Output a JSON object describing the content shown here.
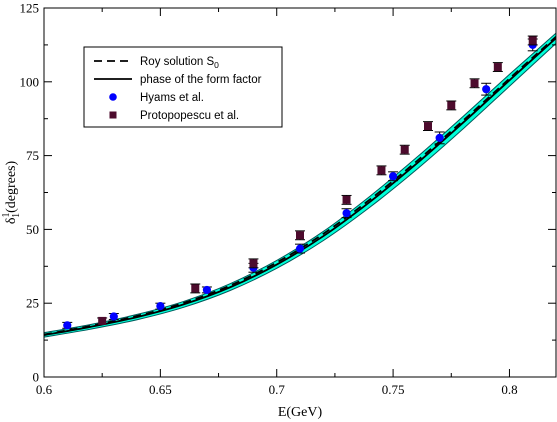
{
  "chart_data": {
    "type": "line",
    "xlabel": "E(GeV)",
    "ylabel": {
      "base": "δ",
      "sup": "1",
      "sub": "1",
      "rest": "(degrees)"
    },
    "xlim": [
      0.6,
      0.82
    ],
    "ylim": [
      0,
      125
    ],
    "x_ticks": [
      "0.6",
      "0.65",
      "0.7",
      "0.75",
      "0.8"
    ],
    "y_ticks": [
      "0",
      "25",
      "50",
      "75",
      "100",
      "125"
    ],
    "grid": false,
    "legend_position": "top-left",
    "legend": [
      {
        "label": "Roy solution S",
        "sub": "0",
        "style": "dashed"
      },
      {
        "label": "phase of the form factor",
        "style": "solid"
      },
      {
        "label": "Hyams et al.",
        "marker": "circle",
        "color": "#0000ff"
      },
      {
        "label": "Protopopescu et al.",
        "marker": "square",
        "color": "#4d0b2d"
      }
    ],
    "band": {
      "color": "#00ffd8",
      "edge_color": "#005a5a",
      "x": [
        0.6,
        0.62,
        0.64,
        0.66,
        0.68,
        0.7,
        0.72,
        0.74,
        0.76,
        0.78,
        0.8,
        0.82
      ],
      "lower": [
        13.5,
        16.2,
        19.4,
        23.6,
        29.3,
        36.8,
        46.2,
        57.5,
        70.2,
        84.0,
        98.5,
        113.0
      ],
      "upper": [
        15.0,
        17.8,
        21.2,
        25.6,
        31.6,
        39.5,
        49.3,
        61.2,
        74.3,
        88.2,
        102.5,
        116.5
      ]
    },
    "series": [
      {
        "name": "phase of the form factor",
        "style": "solid",
        "x": [
          0.6,
          0.62,
          0.64,
          0.66,
          0.68,
          0.7,
          0.72,
          0.74,
          0.76,
          0.78,
          0.8,
          0.82
        ],
        "y": [
          14.2,
          17.0,
          20.3,
          24.6,
          30.4,
          38.1,
          47.7,
          59.3,
          72.2,
          86.1,
          100.5,
          114.8
        ]
      },
      {
        "name": "Roy solution S0",
        "style": "dashed",
        "x": [
          0.6,
          0.62,
          0.64,
          0.66,
          0.68,
          0.7,
          0.72,
          0.74,
          0.76,
          0.78,
          0.8,
          0.82
        ],
        "y": [
          14.4,
          17.3,
          20.7,
          25.1,
          31.0,
          38.8,
          48.5,
          60.1,
          73.0,
          86.8,
          101.1,
          115.3
        ]
      },
      {
        "name": "Hyams et al.",
        "marker": "circle",
        "color": "#0000ff",
        "points": [
          [
            0.61,
            17.5,
            1.0
          ],
          [
            0.63,
            20.5,
            1.0
          ],
          [
            0.65,
            24.0,
            1.0
          ],
          [
            0.67,
            29.5,
            1.0
          ],
          [
            0.69,
            37.0,
            1.5
          ],
          [
            0.71,
            43.5,
            1.5
          ],
          [
            0.73,
            55.5,
            1.5
          ],
          [
            0.75,
            68.0,
            1.5
          ],
          [
            0.77,
            81.0,
            2.0
          ],
          [
            0.79,
            97.5,
            2.0
          ],
          [
            0.81,
            112.5,
            2.0
          ]
        ]
      },
      {
        "name": "Protopopescu et al.",
        "marker": "square",
        "color": "#4d0b2d",
        "points": [
          [
            0.625,
            19.0,
            1.0
          ],
          [
            0.665,
            30.0,
            1.5
          ],
          [
            0.69,
            38.5,
            1.5
          ],
          [
            0.71,
            48.0,
            1.5
          ],
          [
            0.73,
            60.0,
            1.5
          ],
          [
            0.745,
            70.0,
            1.5
          ],
          [
            0.755,
            77.0,
            1.5
          ],
          [
            0.765,
            85.0,
            1.5
          ],
          [
            0.775,
            92.0,
            1.5
          ],
          [
            0.785,
            99.5,
            1.5
          ],
          [
            0.795,
            105.0,
            1.5
          ],
          [
            0.81,
            114.0,
            1.5
          ]
        ]
      }
    ]
  }
}
